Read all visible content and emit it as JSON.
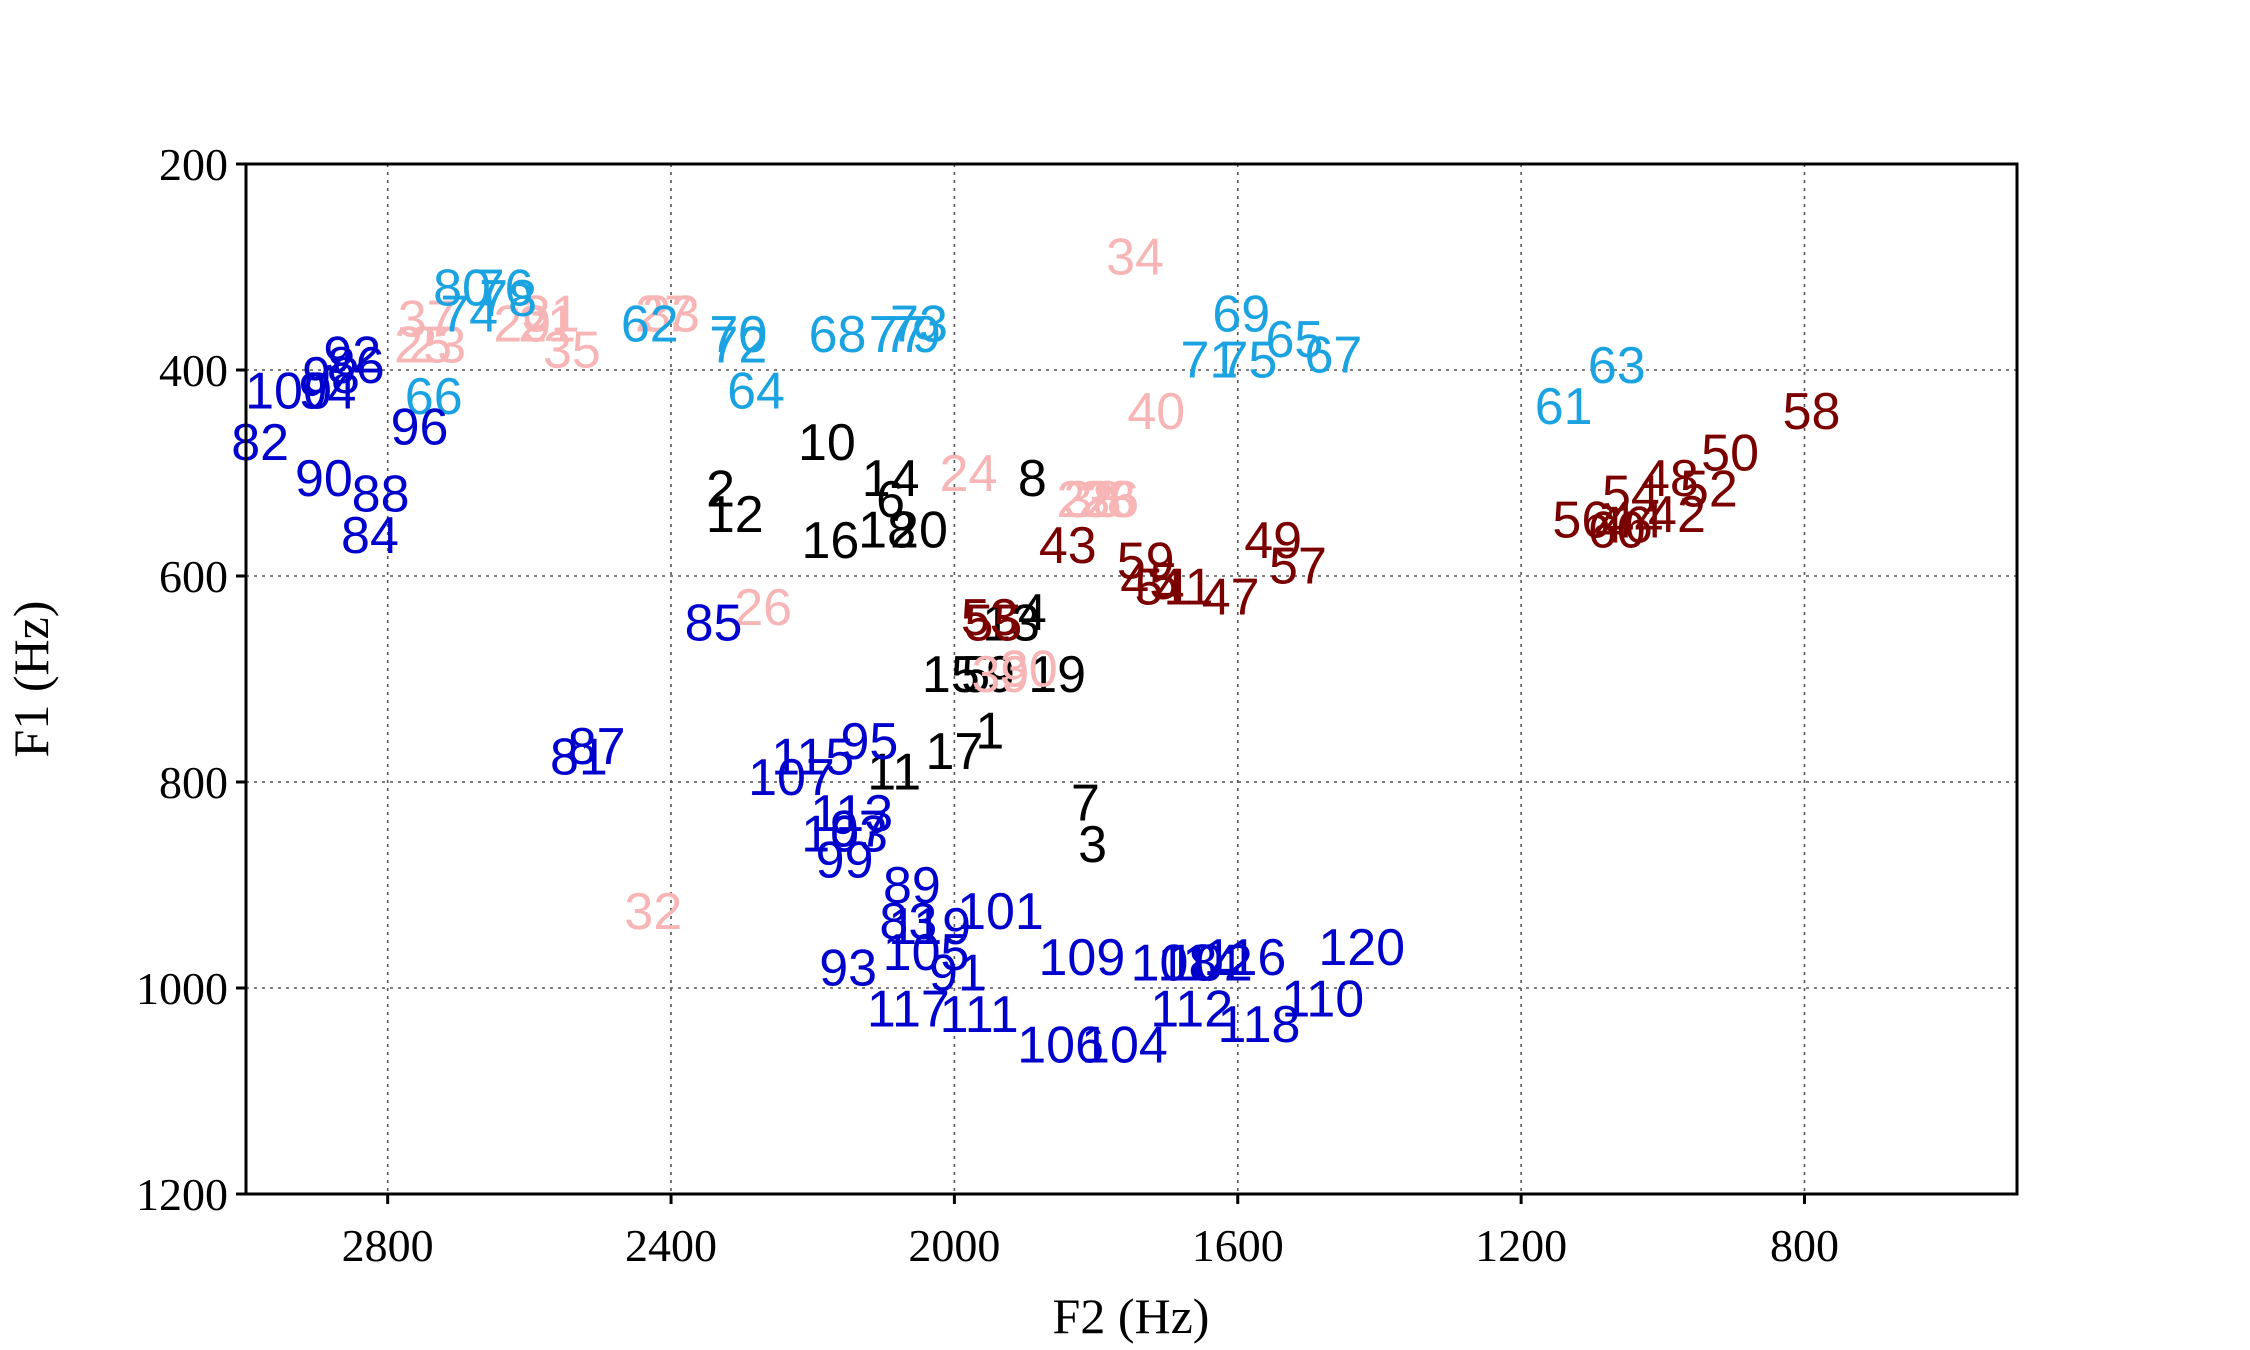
{
  "chart_data": {
    "type": "scatter",
    "marker": "text-label",
    "xlabel": "F2 (Hz)",
    "ylabel": "F1 (Hz)",
    "xlim": [
      3000,
      500
    ],
    "ylim": [
      1200,
      200
    ],
    "x_reversed": true,
    "y_reversed": true,
    "grid": true,
    "legend": "none",
    "xticks": [
      2800,
      2400,
      2000,
      1600,
      1200,
      800
    ],
    "yticks": [
      200,
      400,
      600,
      800,
      1000,
      1200
    ],
    "colors": {
      "black": "#000000",
      "pink": "#f7b5b5",
      "cyan": "#1aa3e0",
      "darkred": "#7a0000",
      "blue": "#0000cc"
    },
    "series": [
      {
        "color": "#000000",
        "points": [
          {
            "label": "1",
            "x": 1950,
            "y": 750
          },
          {
            "label": "2",
            "x": 2330,
            "y": 515
          },
          {
            "label": "3",
            "x": 1805,
            "y": 860
          },
          {
            "label": "4",
            "x": 1890,
            "y": 635
          },
          {
            "label": "5",
            "x": 1970,
            "y": 695
          },
          {
            "label": "6",
            "x": 2090,
            "y": 525
          },
          {
            "label": "7",
            "x": 1815,
            "y": 820
          },
          {
            "label": "8",
            "x": 1890,
            "y": 505
          },
          {
            "label": "9",
            "x": 1935,
            "y": 695
          },
          {
            "label": "10",
            "x": 2180,
            "y": 470
          },
          {
            "label": "11",
            "x": 2085,
            "y": 790
          },
          {
            "label": "12",
            "x": 2310,
            "y": 540
          },
          {
            "label": "13",
            "x": 1920,
            "y": 645
          },
          {
            "label": "14",
            "x": 2090,
            "y": 505
          },
          {
            "label": "15",
            "x": 2005,
            "y": 695
          },
          {
            "label": "16",
            "x": 2175,
            "y": 565
          },
          {
            "label": "17",
            "x": 2000,
            "y": 770
          },
          {
            "label": "18",
            "x": 2095,
            "y": 555
          },
          {
            "label": "19",
            "x": 1855,
            "y": 695
          },
          {
            "label": "20",
            "x": 2050,
            "y": 555
          }
        ]
      },
      {
        "color": "#f7b5b5",
        "points": [
          {
            "label": "21",
            "x": 2575,
            "y": 355
          },
          {
            "label": "22",
            "x": 1815,
            "y": 525
          },
          {
            "label": "23",
            "x": 2730,
            "y": 375
          },
          {
            "label": "24",
            "x": 1980,
            "y": 500
          },
          {
            "label": "25",
            "x": 2750,
            "y": 375
          },
          {
            "label": "26",
            "x": 2270,
            "y": 630
          },
          {
            "label": "27",
            "x": 2410,
            "y": 345
          },
          {
            "label": "28",
            "x": 1785,
            "y": 525
          },
          {
            "label": "29",
            "x": 2610,
            "y": 355
          },
          {
            "label": "30",
            "x": 1895,
            "y": 690
          },
          {
            "label": "31",
            "x": 2570,
            "y": 345
          },
          {
            "label": "32",
            "x": 2425,
            "y": 925
          },
          {
            "label": "33",
            "x": 2400,
            "y": 345
          },
          {
            "label": "34",
            "x": 1745,
            "y": 290
          },
          {
            "label": "35",
            "x": 2540,
            "y": 380
          },
          {
            "label": "36",
            "x": 1780,
            "y": 525
          },
          {
            "label": "37",
            "x": 2745,
            "y": 350
          },
          {
            "label": "38",
            "x": 1805,
            "y": 525
          },
          {
            "label": "39",
            "x": 1935,
            "y": 695
          },
          {
            "label": "40",
            "x": 1715,
            "y": 440
          }
        ]
      },
      {
        "color": "#7a0000",
        "points": [
          {
            "label": "41",
            "x": 1675,
            "y": 610
          },
          {
            "label": "42",
            "x": 980,
            "y": 540
          },
          {
            "label": "43",
            "x": 1840,
            "y": 570
          },
          {
            "label": "44",
            "x": 1040,
            "y": 545
          },
          {
            "label": "45",
            "x": 1725,
            "y": 605
          },
          {
            "label": "46",
            "x": 1055,
            "y": 550
          },
          {
            "label": "47",
            "x": 1610,
            "y": 620
          },
          {
            "label": "48",
            "x": 990,
            "y": 505
          },
          {
            "label": "49",
            "x": 1550,
            "y": 565
          },
          {
            "label": "50",
            "x": 905,
            "y": 480
          },
          {
            "label": "51",
            "x": 1705,
            "y": 610
          },
          {
            "label": "52",
            "x": 935,
            "y": 515
          },
          {
            "label": "53",
            "x": 1950,
            "y": 640
          },
          {
            "label": "54",
            "x": 1045,
            "y": 520
          },
          {
            "label": "55",
            "x": 1945,
            "y": 645
          },
          {
            "label": "56",
            "x": 1115,
            "y": 545
          },
          {
            "label": "57",
            "x": 1515,
            "y": 590
          },
          {
            "label": "58",
            "x": 790,
            "y": 440
          },
          {
            "label": "59",
            "x": 1730,
            "y": 585
          },
          {
            "label": "60",
            "x": 1065,
            "y": 555
          }
        ]
      },
      {
        "color": "#1aa3e0",
        "points": [
          {
            "label": "61",
            "x": 1140,
            "y": 435
          },
          {
            "label": "62",
            "x": 2430,
            "y": 355
          },
          {
            "label": "63",
            "x": 1065,
            "y": 395
          },
          {
            "label": "64",
            "x": 2280,
            "y": 420
          },
          {
            "label": "65",
            "x": 1520,
            "y": 370
          },
          {
            "label": "66",
            "x": 2735,
            "y": 425
          },
          {
            "label": "67",
            "x": 1465,
            "y": 385
          },
          {
            "label": "68",
            "x": 2165,
            "y": 365
          },
          {
            "label": "69",
            "x": 1595,
            "y": 345
          },
          {
            "label": "70",
            "x": 2305,
            "y": 365
          },
          {
            "label": "71",
            "x": 1640,
            "y": 390
          },
          {
            "label": "72",
            "x": 2305,
            "y": 375
          },
          {
            "label": "73",
            "x": 2050,
            "y": 355
          },
          {
            "label": "74",
            "x": 2685,
            "y": 345
          },
          {
            "label": "75",
            "x": 1585,
            "y": 390
          },
          {
            "label": "76",
            "x": 2635,
            "y": 320
          },
          {
            "label": "77",
            "x": 2080,
            "y": 365
          },
          {
            "label": "78",
            "x": 2630,
            "y": 330
          },
          {
            "label": "79",
            "x": 2060,
            "y": 365
          },
          {
            "label": "80",
            "x": 2695,
            "y": 320
          }
        ]
      },
      {
        "color": "#0000cc",
        "points": [
          {
            "label": "81",
            "x": 2530,
            "y": 775
          },
          {
            "label": "82",
            "x": 2980,
            "y": 470
          },
          {
            "label": "83",
            "x": 2065,
            "y": 935
          },
          {
            "label": "84",
            "x": 2825,
            "y": 560
          },
          {
            "label": "85",
            "x": 2340,
            "y": 645
          },
          {
            "label": "86",
            "x": 2845,
            "y": 395
          },
          {
            "label": "87",
            "x": 2505,
            "y": 765
          },
          {
            "label": "88",
            "x": 2810,
            "y": 520
          },
          {
            "label": "89",
            "x": 2060,
            "y": 900
          },
          {
            "label": "90",
            "x": 2890,
            "y": 505
          },
          {
            "label": "91",
            "x": 1995,
            "y": 985
          },
          {
            "label": "92",
            "x": 2850,
            "y": 385
          },
          {
            "label": "93",
            "x": 2150,
            "y": 980
          },
          {
            "label": "94",
            "x": 2885,
            "y": 420
          },
          {
            "label": "95",
            "x": 2120,
            "y": 760
          },
          {
            "label": "96",
            "x": 2755,
            "y": 455
          },
          {
            "label": "97",
            "x": 2135,
            "y": 845
          },
          {
            "label": "98",
            "x": 2880,
            "y": 405
          },
          {
            "label": "99",
            "x": 2155,
            "y": 875
          },
          {
            "label": "100",
            "x": 2940,
            "y": 420
          },
          {
            "label": "101",
            "x": 1935,
            "y": 925
          },
          {
            "label": "102",
            "x": 1640,
            "y": 975
          },
          {
            "label": "103",
            "x": 2155,
            "y": 850
          },
          {
            "label": "104",
            "x": 1760,
            "y": 1055
          },
          {
            "label": "105",
            "x": 2040,
            "y": 965
          },
          {
            "label": "106",
            "x": 1850,
            "y": 1055
          },
          {
            "label": "107",
            "x": 2230,
            "y": 795
          },
          {
            "label": "108",
            "x": 1690,
            "y": 975
          },
          {
            "label": "109",
            "x": 1820,
            "y": 970
          },
          {
            "label": "110",
            "x": 1480,
            "y": 1010
          },
          {
            "label": "111",
            "x": 1965,
            "y": 1025
          },
          {
            "label": "112",
            "x": 1665,
            "y": 1020
          },
          {
            "label": "113",
            "x": 2145,
            "y": 830
          },
          {
            "label": "114",
            "x": 1655,
            "y": 975
          },
          {
            "label": "115",
            "x": 2200,
            "y": 775
          },
          {
            "label": "116",
            "x": 1590,
            "y": 970
          },
          {
            "label": "117",
            "x": 2065,
            "y": 1020
          },
          {
            "label": "118",
            "x": 1570,
            "y": 1035
          },
          {
            "label": "119",
            "x": 2035,
            "y": 940
          },
          {
            "label": "120",
            "x": 1425,
            "y": 960
          }
        ]
      }
    ]
  }
}
